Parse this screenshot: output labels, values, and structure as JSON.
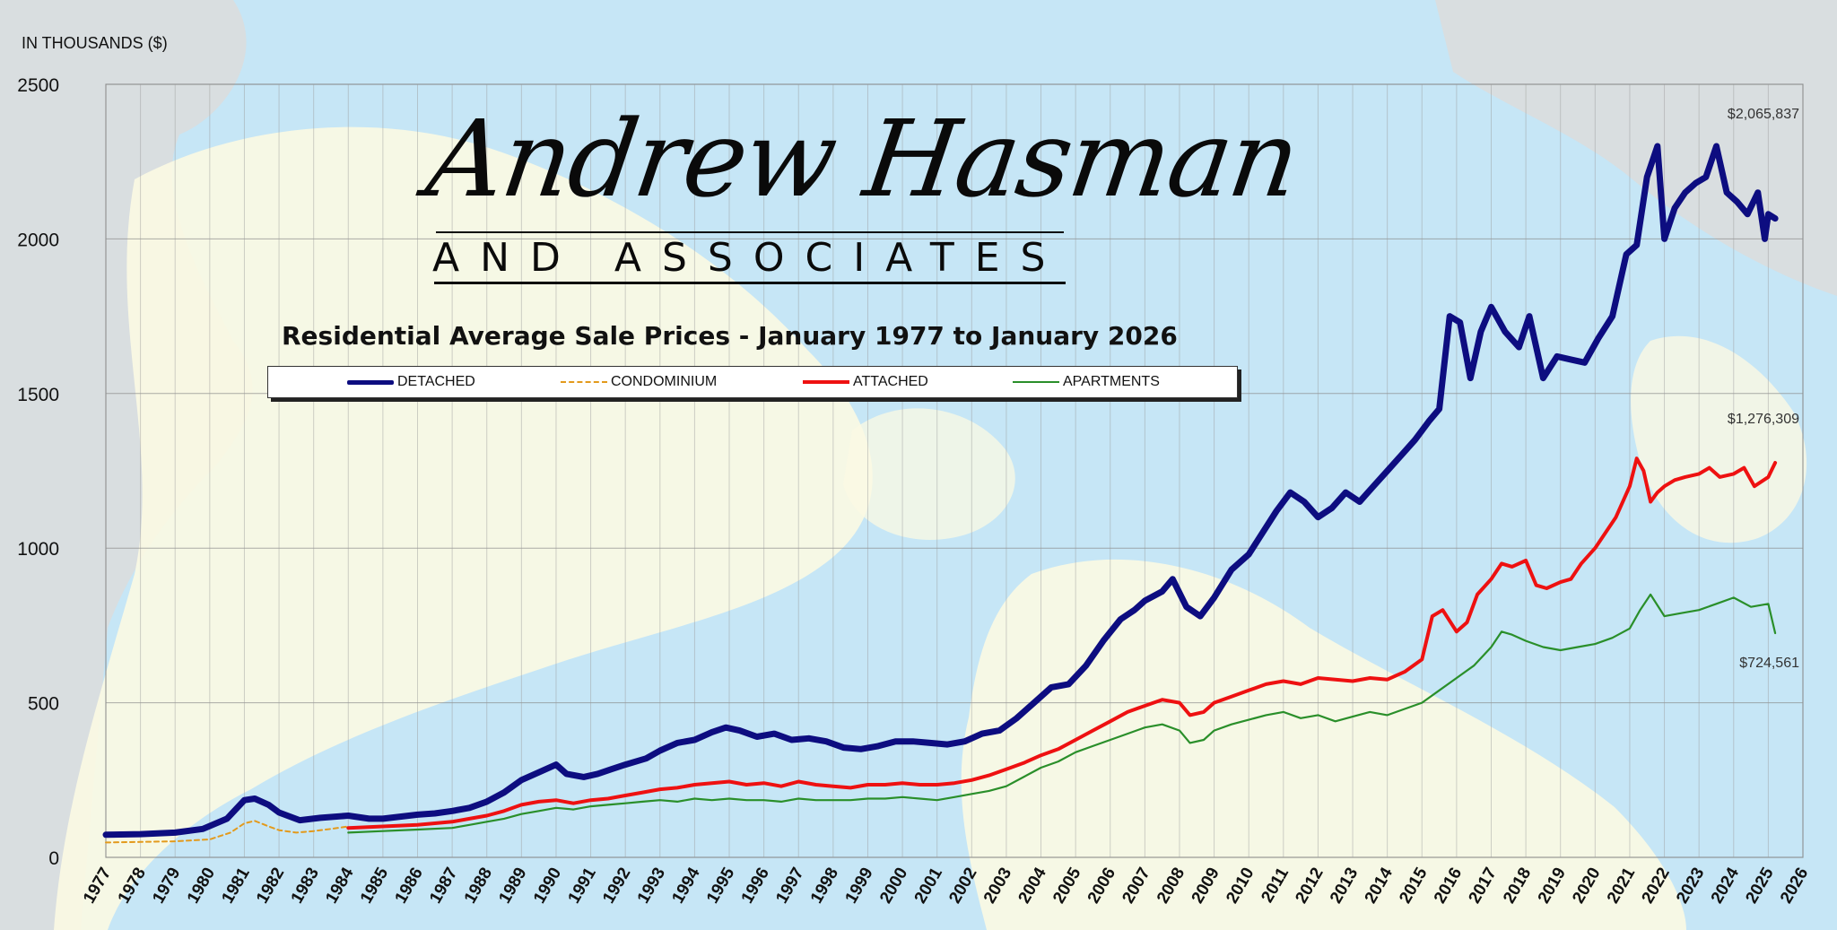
{
  "logo": {
    "script_text": "Andrew Hasman",
    "subtitle_text": "AND ASSOCIATES"
  },
  "chart_data": {
    "type": "line",
    "title": "Residential Average Sale Prices  -  January 1977 to January 2026",
    "ylabel": "IN THOUSANDS ($)",
    "xlabel": "",
    "ylim": [
      0,
      2500
    ],
    "yticks": [
      0,
      500,
      1000,
      1500,
      2000,
      2500
    ],
    "xlim": [
      1977,
      2026
    ],
    "xticks": [
      "1977",
      "1978",
      "1979",
      "1980",
      "1981",
      "1982",
      "1983",
      "1984",
      "1985",
      "1986",
      "1987",
      "1988",
      "1989",
      "1990",
      "1991",
      "1992",
      "1993",
      "1994",
      "1995",
      "1996",
      "1997",
      "1998",
      "1999",
      "2000",
      "2001",
      "2002",
      "2003",
      "2004",
      "2005",
      "2006",
      "2007",
      "2008",
      "2009",
      "2010",
      "2011",
      "2012",
      "2013",
      "2014",
      "2015",
      "2016",
      "2017",
      "2018",
      "2019",
      "2020",
      "2021",
      "2022",
      "2023",
      "2024",
      "2025",
      "2026"
    ],
    "grid": true,
    "legend_position": "top-center",
    "series": [
      {
        "name": "DETACHED",
        "color": "#0d0d80",
        "style": "solid-thick",
        "x": [
          1977,
          1978,
          1979,
          1979.8,
          1980.5,
          1981.0,
          1981.3,
          1981.7,
          1982.0,
          1982.6,
          1983.2,
          1984.0,
          1984.6,
          1985.0,
          1986.0,
          1986.5,
          1987.0,
          1987.5,
          1988.0,
          1988.5,
          1989.0,
          1989.5,
          1990.0,
          1990.3,
          1990.8,
          1991.2,
          1991.6,
          1992.0,
          1992.6,
          1993.0,
          1993.5,
          1994.0,
          1994.5,
          1994.9,
          1995.3,
          1995.8,
          1996.3,
          1996.8,
          1997.3,
          1997.8,
          1998.3,
          1998.8,
          1999.3,
          1999.8,
          2000.3,
          2000.8,
          2001.3,
          2001.8,
          2002.3,
          2002.8,
          2003.3,
          2003.8,
          2004.3,
          2004.8,
          2005.3,
          2005.8,
          2006.3,
          2006.7,
          2007.0,
          2007.5,
          2007.8,
          2008.2,
          2008.6,
          2009.0,
          2009.5,
          2010.0,
          2010.4,
          2010.8,
          2011.2,
          2011.6,
          2012.0,
          2012.4,
          2012.8,
          2013.2,
          2013.6,
          2014.0,
          2014.4,
          2014.8,
          2015.2,
          2015.5,
          2015.8,
          2016.1,
          2016.4,
          2016.7,
          2017.0,
          2017.4,
          2017.8,
          2018.1,
          2018.5,
          2018.9,
          2019.3,
          2019.7,
          2020.1,
          2020.5,
          2020.9,
          2021.2,
          2021.5,
          2021.8,
          2022.0,
          2022.3,
          2022.6,
          2022.9,
          2023.2,
          2023.5,
          2023.8,
          2024.1,
          2024.4,
          2024.7,
          2024.9,
          2025.0,
          2025.2
        ],
        "values": [
          73,
          75,
          80,
          92,
          125,
          185,
          190,
          170,
          145,
          120,
          128,
          135,
          125,
          125,
          138,
          142,
          150,
          160,
          180,
          210,
          250,
          275,
          300,
          270,
          260,
          270,
          285,
          300,
          320,
          345,
          370,
          380,
          405,
          420,
          410,
          390,
          400,
          380,
          385,
          375,
          355,
          350,
          360,
          375,
          375,
          370,
          365,
          375,
          400,
          410,
          450,
          500,
          550,
          560,
          620,
          700,
          770,
          800,
          830,
          860,
          900,
          810,
          780,
          840,
          930,
          980,
          1050,
          1120,
          1180,
          1150,
          1100,
          1130,
          1180,
          1150,
          1200,
          1250,
          1300,
          1350,
          1410,
          1450,
          1750,
          1730,
          1550,
          1700,
          1780,
          1700,
          1650,
          1750,
          1550,
          1620,
          1610,
          1600,
          1680,
          1750,
          1950,
          1980,
          2200,
          2300,
          2000,
          2100,
          2150,
          2180,
          2200,
          2300,
          2150,
          2120,
          2080,
          2150,
          2000,
          2080,
          2066
        ]
      },
      {
        "name": "CONDOMINIUM",
        "color": "#e39a1c",
        "style": "dashed",
        "x": [
          1977,
          1978,
          1979,
          1980,
          1980.6,
          1981.0,
          1981.3,
          1981.7,
          1982.0,
          1982.5,
          1983.0,
          1983.5,
          1984.0
        ],
        "values": [
          48,
          50,
          52,
          58,
          80,
          110,
          118,
          100,
          88,
          80,
          85,
          92,
          100
        ]
      },
      {
        "name": "ATTACHED",
        "color": "#ee1111",
        "style": "solid-medium",
        "x": [
          1984,
          1985,
          1986,
          1987,
          1987.5,
          1988,
          1988.5,
          1989,
          1989.5,
          1990,
          1990.5,
          1991,
          1991.5,
          1992,
          1992.5,
          1993,
          1993.5,
          1994,
          1994.5,
          1995,
          1995.5,
          1996,
          1996.5,
          1997,
          1997.5,
          1998,
          1998.5,
          1999,
          1999.5,
          2000,
          2000.5,
          2001,
          2001.5,
          2002,
          2002.5,
          2003,
          2003.5,
          2004,
          2004.5,
          2005,
          2005.5,
          2006,
          2006.5,
          2007,
          2007.5,
          2008,
          2008.3,
          2008.7,
          2009,
          2009.5,
          2010,
          2010.5,
          2011,
          2011.5,
          2012,
          2012.5,
          2013,
          2013.5,
          2014,
          2014.5,
          2015,
          2015.3,
          2015.6,
          2016,
          2016.3,
          2016.6,
          2017,
          2017.3,
          2017.6,
          2018,
          2018.3,
          2018.6,
          2019,
          2019.3,
          2019.6,
          2020,
          2020.3,
          2020.6,
          2021,
          2021.2,
          2021.4,
          2021.6,
          2021.8,
          2022,
          2022.3,
          2022.6,
          2023,
          2023.3,
          2023.6,
          2024,
          2024.3,
          2024.6,
          2025,
          2025.2
        ],
        "values": [
          95,
          100,
          105,
          115,
          125,
          135,
          150,
          170,
          180,
          185,
          175,
          185,
          190,
          200,
          210,
          220,
          225,
          235,
          240,
          245,
          235,
          240,
          230,
          245,
          235,
          230,
          225,
          235,
          235,
          240,
          235,
          235,
          240,
          250,
          265,
          285,
          305,
          330,
          350,
          380,
          410,
          440,
          470,
          490,
          510,
          500,
          460,
          470,
          500,
          520,
          540,
          560,
          570,
          560,
          580,
          575,
          570,
          580,
          575,
          600,
          640,
          780,
          800,
          730,
          760,
          850,
          900,
          950,
          940,
          960,
          880,
          870,
          890,
          900,
          950,
          1000,
          1050,
          1100,
          1200,
          1290,
          1250,
          1150,
          1180,
          1200,
          1220,
          1230,
          1240,
          1260,
          1230,
          1240,
          1260,
          1200,
          1230,
          1276
        ]
      },
      {
        "name": "APARTMENTS",
        "color": "#2a8f2a",
        "style": "solid-thin",
        "x": [
          1984,
          1985,
          1986,
          1987,
          1987.5,
          1988,
          1988.5,
          1989,
          1989.5,
          1990,
          1990.5,
          1991,
          1991.5,
          1992,
          1992.5,
          1993,
          1993.5,
          1994,
          1994.5,
          1995,
          1995.5,
          1996,
          1996.5,
          1997,
          1997.5,
          1998,
          1998.5,
          1999,
          1999.5,
          2000,
          2000.5,
          2001,
          2001.5,
          2002,
          2002.5,
          2003,
          2003.5,
          2004,
          2004.5,
          2005,
          2005.5,
          2006,
          2006.5,
          2007,
          2007.5,
          2008,
          2008.3,
          2008.7,
          2009,
          2009.5,
          2010,
          2010.5,
          2011,
          2011.5,
          2012,
          2012.5,
          2013,
          2013.5,
          2014,
          2014.5,
          2015,
          2015.5,
          2016,
          2016.5,
          2017,
          2017.3,
          2017.6,
          2018,
          2018.5,
          2019,
          2019.5,
          2020,
          2020.5,
          2021,
          2021.3,
          2021.6,
          2022,
          2022.5,
          2023,
          2023.5,
          2024,
          2024.5,
          2025,
          2025.2
        ],
        "values": [
          80,
          85,
          90,
          95,
          105,
          115,
          125,
          140,
          150,
          160,
          155,
          165,
          170,
          175,
          180,
          185,
          180,
          190,
          185,
          190,
          185,
          185,
          180,
          190,
          185,
          185,
          185,
          190,
          190,
          195,
          190,
          185,
          195,
          205,
          215,
          230,
          260,
          290,
          310,
          340,
          360,
          380,
          400,
          420,
          430,
          410,
          370,
          380,
          410,
          430,
          445,
          460,
          470,
          450,
          460,
          440,
          455,
          470,
          460,
          480,
          500,
          540,
          580,
          620,
          680,
          730,
          720,
          700,
          680,
          670,
          680,
          690,
          710,
          740,
          800,
          850,
          780,
          790,
          800,
          820,
          840,
          810,
          820,
          725
        ]
      }
    ],
    "annotations": [
      {
        "text": "$2,065,837",
        "series": "DETACHED"
      },
      {
        "text": "$1,276,309",
        "series": "ATTACHED"
      },
      {
        "text": "$724,561",
        "series": "APARTMENTS"
      }
    ]
  }
}
